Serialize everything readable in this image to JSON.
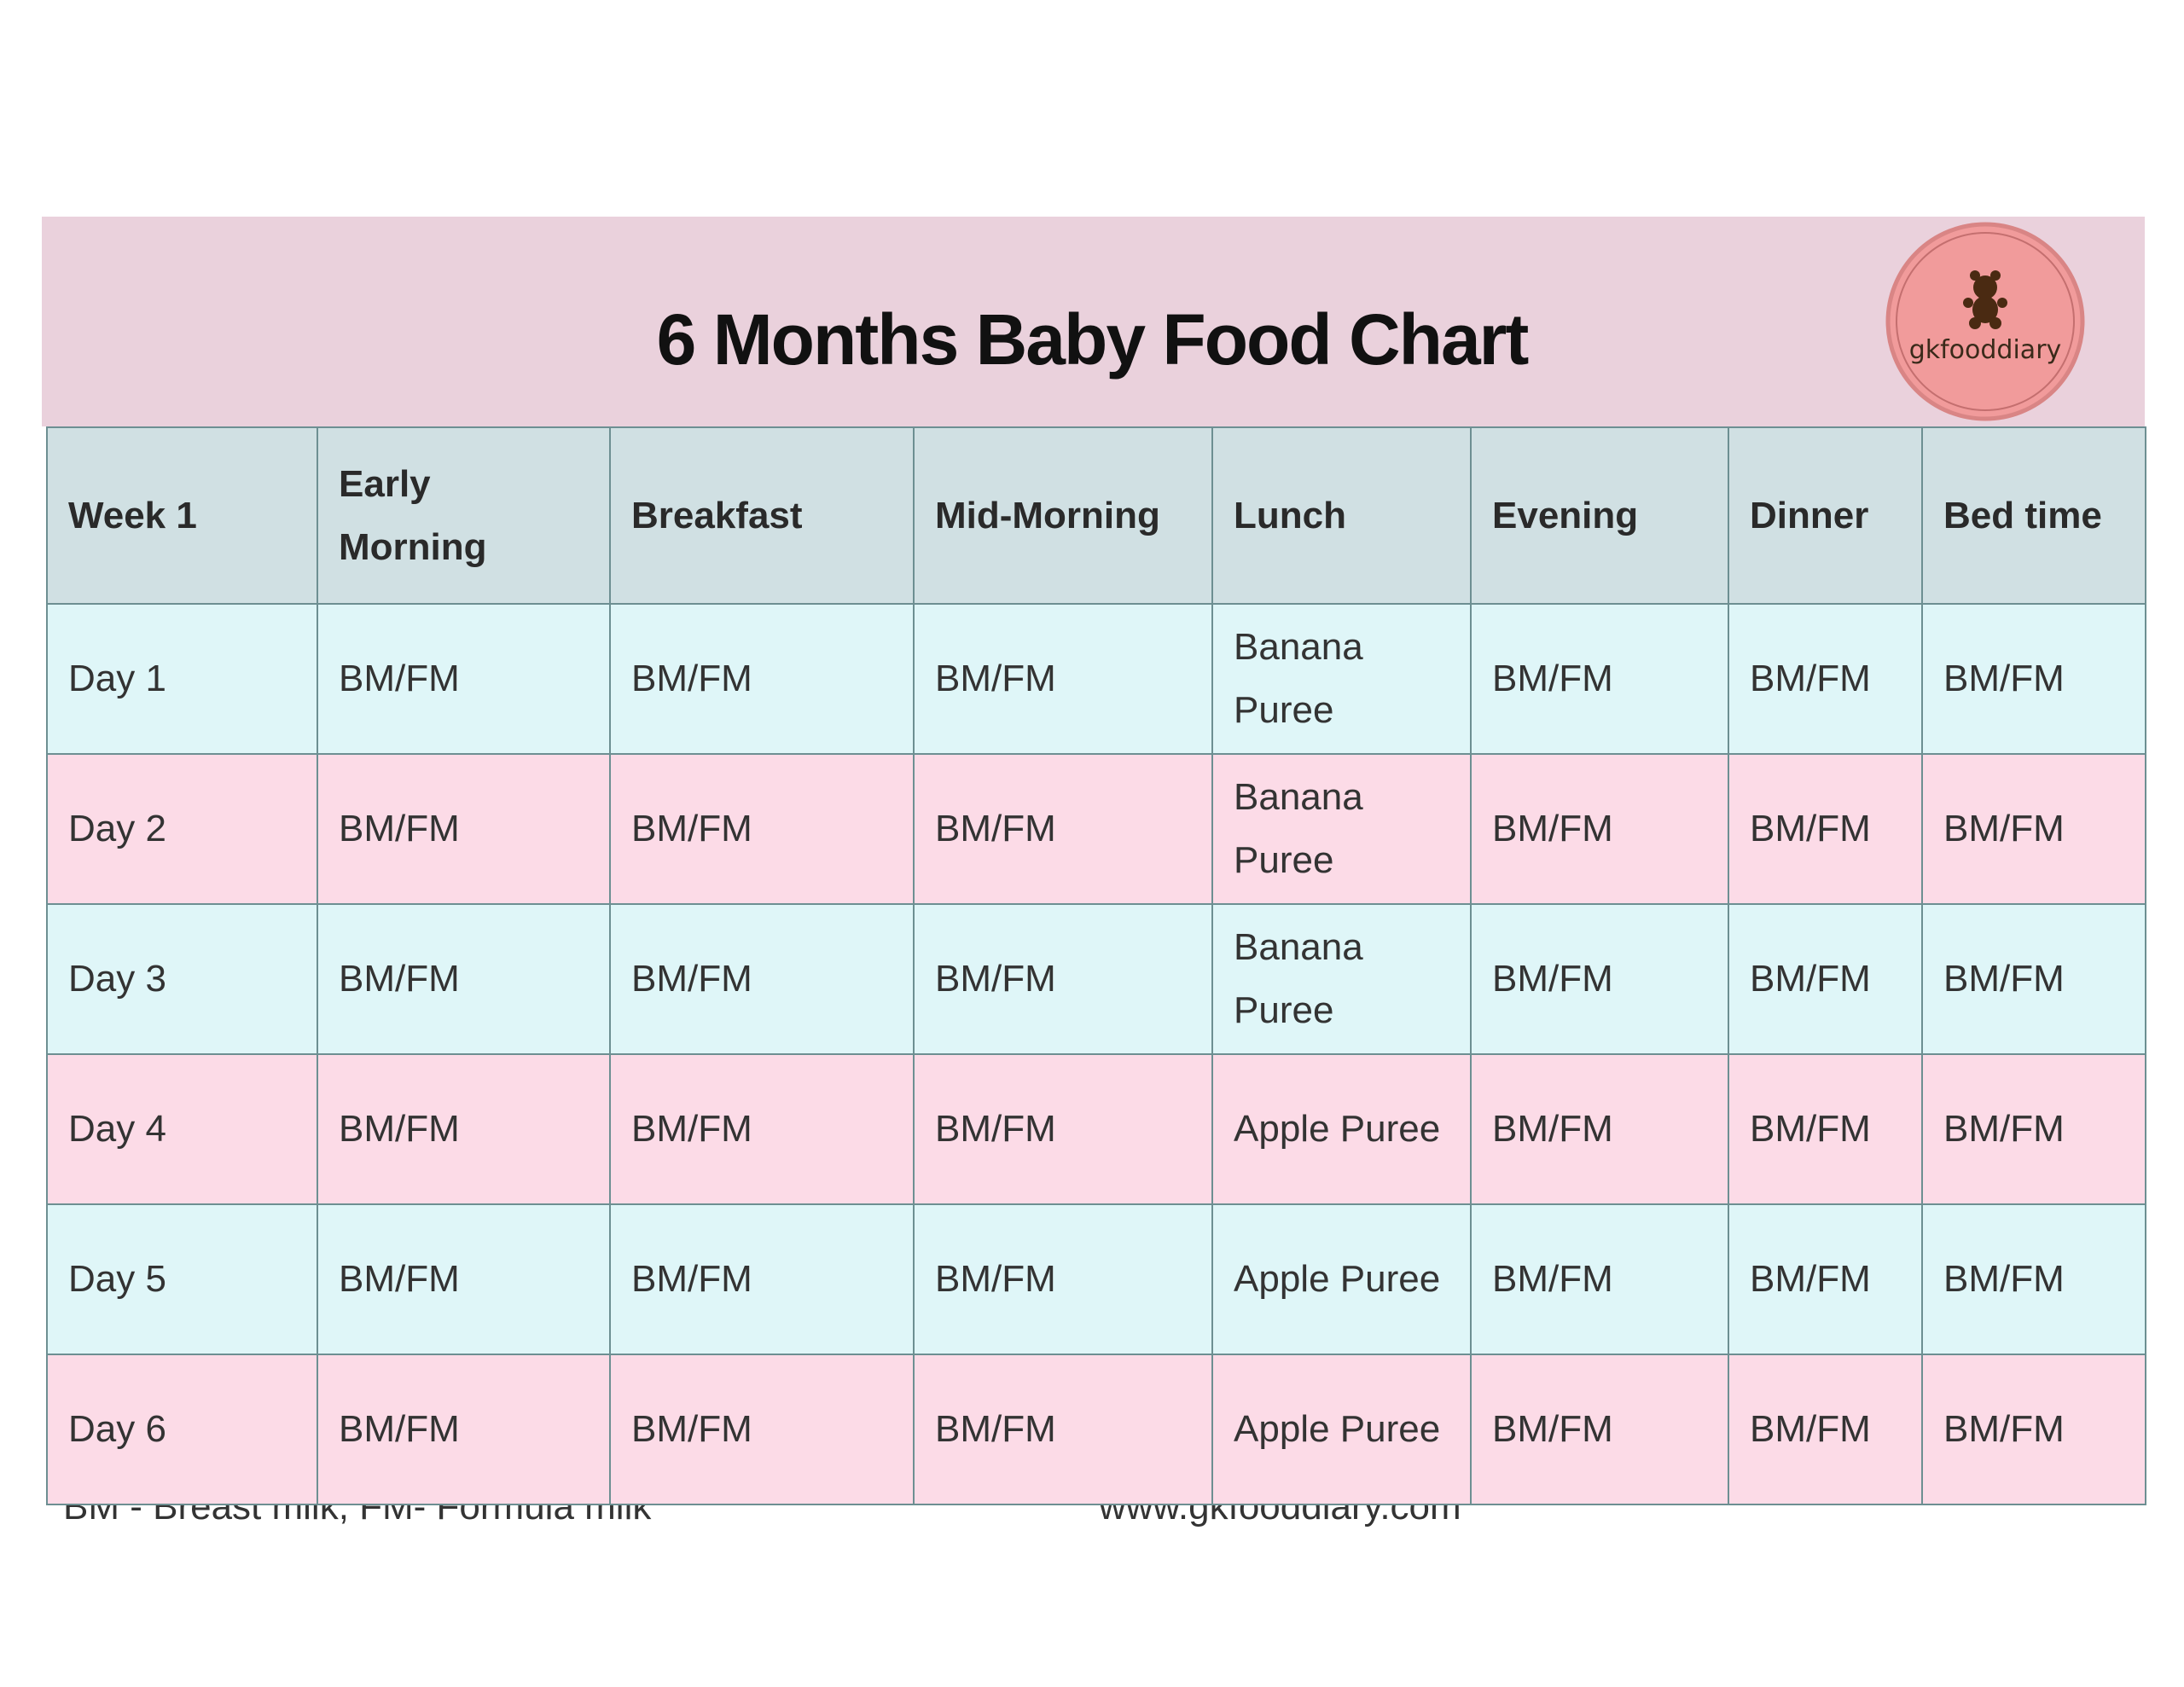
{
  "header": {
    "title": "6 Months Baby Food Chart",
    "logo": "gkfooddiary"
  },
  "table": {
    "columns": [
      "Week 1",
      "Early Morning",
      "Breakfast",
      "Mid-Morning",
      "Lunch",
      "Evening",
      "Dinner",
      "Bed time"
    ],
    "rows": [
      [
        "Day 1",
        "BM/FM",
        "BM/FM",
        "BM/FM",
        "Banana Puree",
        "BM/FM",
        "BM/FM",
        "BM/FM"
      ],
      [
        "Day 2",
        "BM/FM",
        "BM/FM",
        "BM/FM",
        "Banana Puree",
        "BM/FM",
        "BM/FM",
        "BM/FM"
      ],
      [
        "Day 3",
        "BM/FM",
        "BM/FM",
        "BM/FM",
        "Banana Puree",
        "BM/FM",
        "BM/FM",
        "BM/FM"
      ],
      [
        "Day 4",
        "BM/FM",
        "BM/FM",
        "BM/FM",
        "Apple Puree",
        "BM/FM",
        "BM/FM",
        "BM/FM"
      ],
      [
        "Day 5",
        "BM/FM",
        "BM/FM",
        "BM/FM",
        "Apple Puree",
        "BM/FM",
        "BM/FM",
        "BM/FM"
      ],
      [
        "Day 6",
        "BM/FM",
        "BM/FM",
        "BM/FM",
        "Apple Puree",
        "BM/FM",
        "BM/FM",
        "BM/FM"
      ]
    ]
  },
  "footer": {
    "note": "BM - Breast milk, FM- Formula milk",
    "website": "www.gkfooddiary.com"
  }
}
